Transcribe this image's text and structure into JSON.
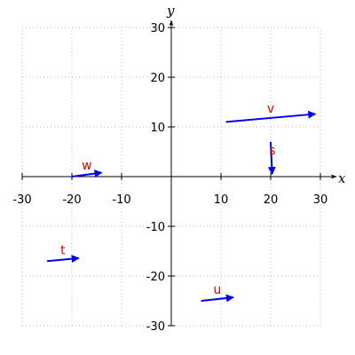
{
  "chart_data": {
    "type": "vector-field",
    "xlabel": "x",
    "ylabel": "y",
    "xlim": [
      -30,
      30
    ],
    "ylim": [
      -30,
      30
    ],
    "xticks": [
      -30,
      -20,
      -10,
      10,
      20,
      30
    ],
    "yticks": [
      -30,
      -20,
      -10,
      10,
      20,
      30
    ],
    "grid": true,
    "vector_color": "#0000ee",
    "label_color": "#dd0000",
    "vectors": [
      {
        "name": "v",
        "start": [
          11,
          11
        ],
        "end": [
          29,
          12.6
        ]
      },
      {
        "name": "s",
        "start": [
          20,
          7
        ],
        "end": [
          20.3,
          0.5
        ]
      },
      {
        "name": "w",
        "start": [
          -20,
          0
        ],
        "end": [
          -14,
          0.8
        ]
      },
      {
        "name": "t",
        "start": [
          -25,
          -17
        ],
        "end": [
          -18.6,
          -16.4
        ]
      },
      {
        "name": "u",
        "start": [
          6,
          -25
        ],
        "end": [
          12.5,
          -24.3
        ]
      }
    ]
  }
}
